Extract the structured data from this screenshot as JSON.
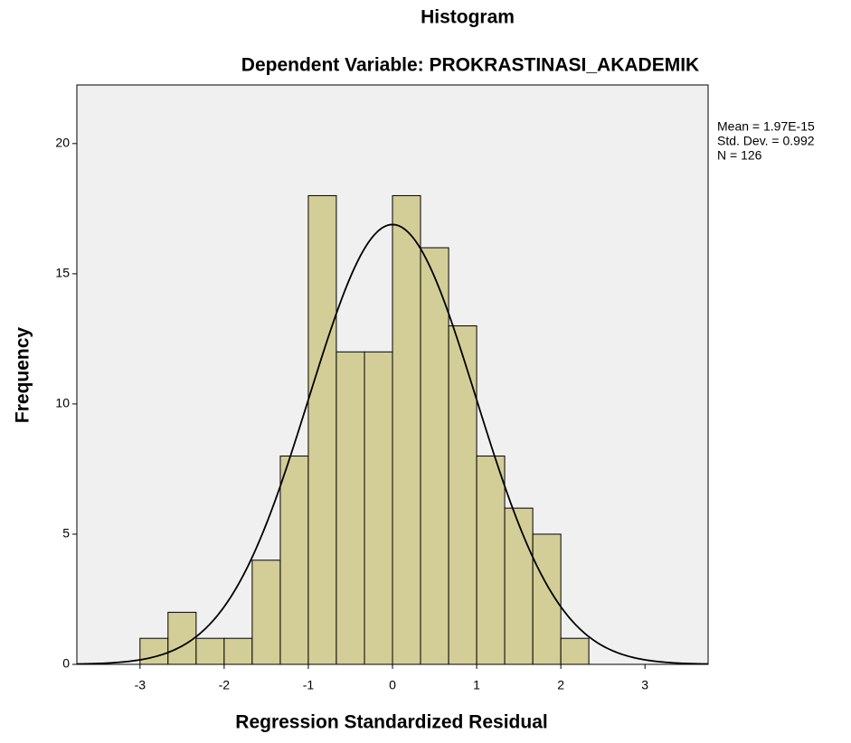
{
  "chart_data": {
    "type": "histogram",
    "title": "Histogram",
    "subtitle": "Dependent Variable: PROKRASTINASI_AKADEMIK",
    "x_label": "Regression Standardized Residual",
    "y_label": "Frequency",
    "bins": [
      -3,
      -2.667,
      -2.333,
      -2,
      -1.667,
      -1.333,
      -1,
      -0.667,
      -0.333,
      0,
      0.333,
      0.667,
      1,
      1.333,
      1.667,
      2,
      2.333
    ],
    "values": [
      1,
      2,
      1,
      1,
      4,
      8,
      18,
      12,
      12,
      18,
      16,
      13,
      8,
      6,
      5,
      1
    ],
    "color": "#d3ce97",
    "curve_color": "#000000",
    "background": "#f0f0f0",
    "xlim": [
      -3.75,
      3.75
    ],
    "xticks": [
      -3,
      -2,
      -1,
      0,
      1,
      2,
      3
    ],
    "ylim": [
      0,
      22.25
    ],
    "yticks": [
      0,
      5,
      10,
      15,
      20
    ],
    "stats": {
      "values": [
        1.97e-15,
        0.992,
        126
      ],
      "value_labels": [
        "Mean = 1.97E-15",
        "Std. Dev. = 0.992",
        "N = 126"
      ]
    }
  }
}
